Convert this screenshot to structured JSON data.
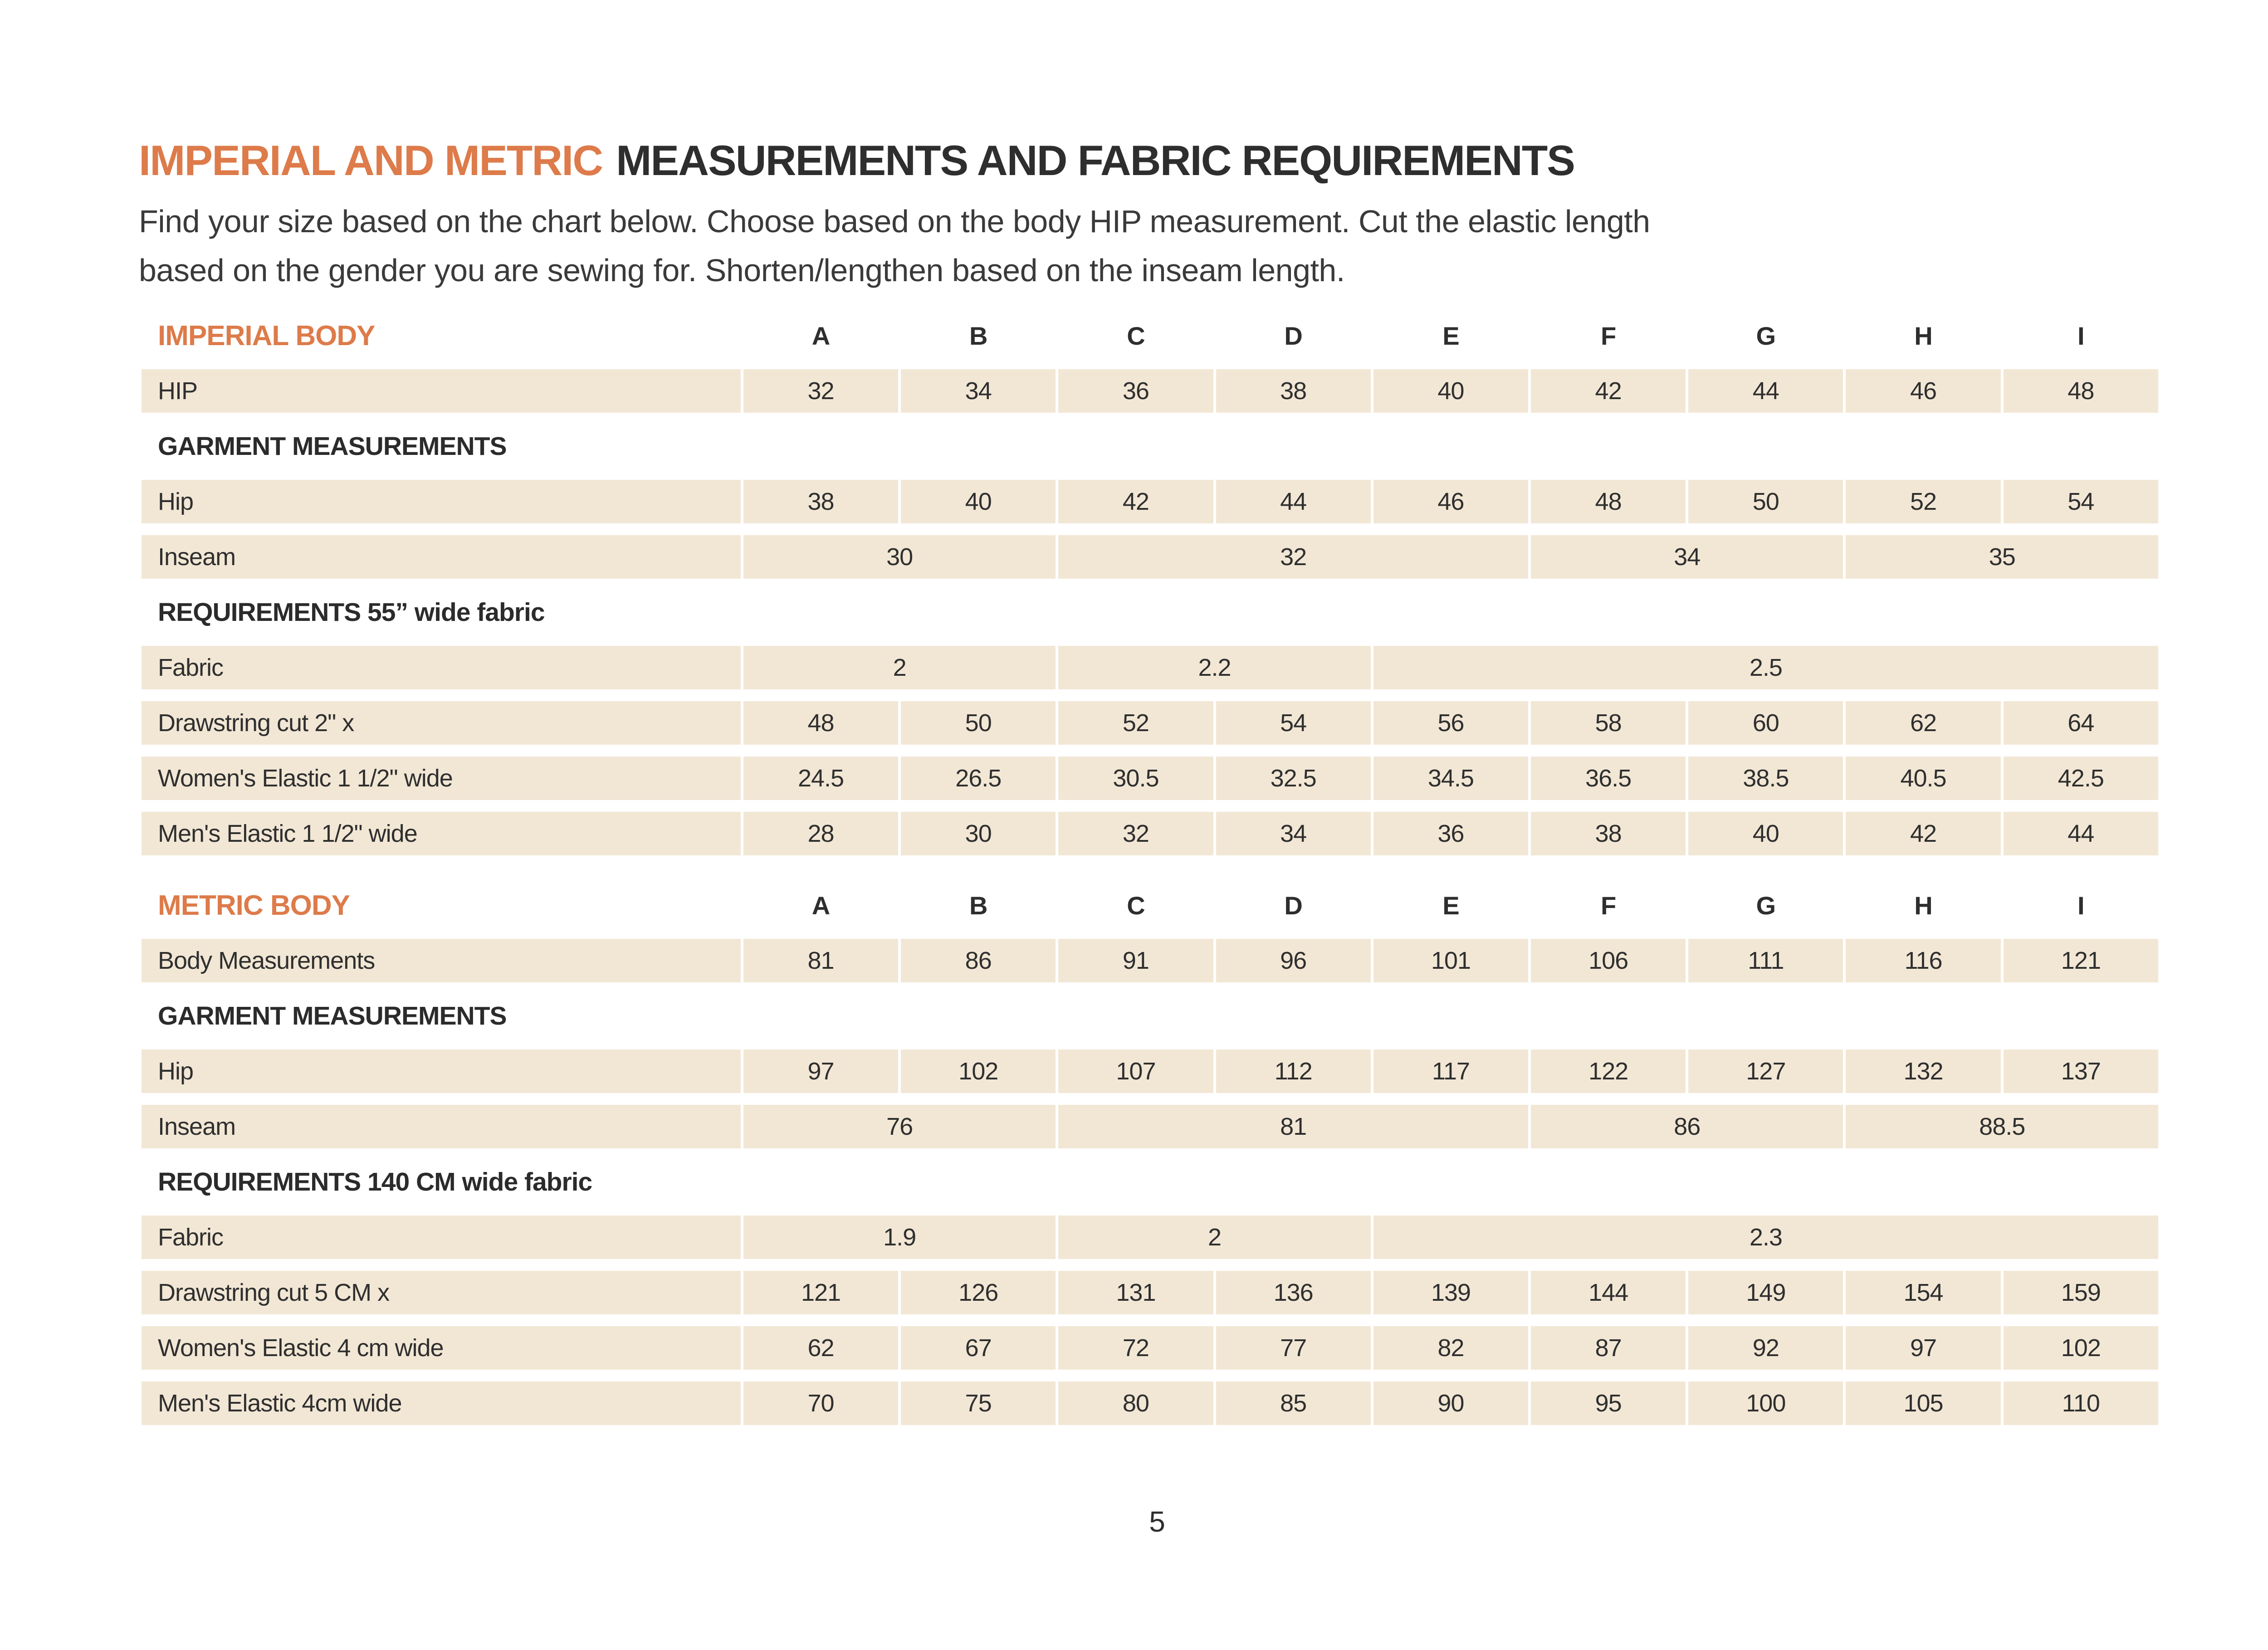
{
  "page": {
    "title_orange": "IMPERIAL AND METRIC",
    "title_dark": "MEASUREMENTS AND FABRIC REQUIREMENTS",
    "intro_line1": "Find your size based on the chart below. Choose based on the body HIP measurement. Cut the elastic length",
    "intro_line2": "based on the gender you are sewing for. Shorten/lengthen based on the inseam length.",
    "page_number": "5"
  },
  "colors": {
    "accent_orange": "#DD7B4A",
    "cell_beige": "#F2E7D5",
    "text_dark": "#2E2E2E"
  },
  "tables": [
    {
      "title": "IMPERIAL BODY",
      "columns": [
        "A",
        "B",
        "C",
        "D",
        "E",
        "F",
        "G",
        "H",
        "I"
      ],
      "rows": [
        {
          "type": "data",
          "label": "HIP",
          "values": [
            "32",
            "34",
            "36",
            "38",
            "40",
            "42",
            "44",
            "46",
            "48"
          ]
        },
        {
          "type": "section",
          "label": "GARMENT MEASUREMENTS"
        },
        {
          "type": "data",
          "label": "Hip",
          "values": [
            "38",
            "40",
            "42",
            "44",
            "46",
            "48",
            "50",
            "52",
            "54"
          ]
        },
        {
          "type": "span",
          "label": "Inseam",
          "cells": [
            {
              "text": "30",
              "span": 2
            },
            {
              "text": "32",
              "span": 3
            },
            {
              "text": "34",
              "span": 2
            },
            {
              "text": "35",
              "span": 2
            }
          ]
        },
        {
          "type": "section",
          "label": "REQUIREMENTS 55” wide fabric"
        },
        {
          "type": "span",
          "label": "Fabric",
          "cells": [
            {
              "text": "2",
              "span": 2
            },
            {
              "text": "2.2",
              "span": 2
            },
            {
              "text": "2.5",
              "span": 5
            }
          ]
        },
        {
          "type": "data",
          "label": "Drawstring cut 2\" x",
          "values": [
            "48",
            "50",
            "52",
            "54",
            "56",
            "58",
            "60",
            "62",
            "64"
          ]
        },
        {
          "type": "data",
          "label": "Women's Elastic 1 1/2\" wide",
          "values": [
            "24.5",
            "26.5",
            "30.5",
            "32.5",
            "34.5",
            "36.5",
            "38.5",
            "40.5",
            "42.5"
          ]
        },
        {
          "type": "data",
          "label": "Men's Elastic 1 1/2\" wide",
          "values": [
            "28",
            "30",
            "32",
            "34",
            "36",
            "38",
            "40",
            "42",
            "44"
          ]
        }
      ]
    },
    {
      "title": "METRIC BODY",
      "columns": [
        "A",
        "B",
        "C",
        "D",
        "E",
        "F",
        "G",
        "H",
        "I"
      ],
      "rows": [
        {
          "type": "data",
          "label": "Body Measurements",
          "values": [
            "81",
            "86",
            "91",
            "96",
            "101",
            "106",
            "111",
            "116",
            "121"
          ]
        },
        {
          "type": "section",
          "label": "GARMENT MEASUREMENTS"
        },
        {
          "type": "data",
          "label": "Hip",
          "values": [
            "97",
            "102",
            "107",
            "112",
            "117",
            "122",
            "127",
            "132",
            "137"
          ]
        },
        {
          "type": "span",
          "label": "Inseam",
          "cells": [
            {
              "text": "76",
              "span": 2
            },
            {
              "text": "81",
              "span": 3
            },
            {
              "text": "86",
              "span": 2
            },
            {
              "text": "88.5",
              "span": 2
            }
          ]
        },
        {
          "type": "section",
          "label": "REQUIREMENTS 140 CM wide fabric"
        },
        {
          "type": "span",
          "label": "Fabric",
          "cells": [
            {
              "text": "1.9",
              "span": 2
            },
            {
              "text": "2",
              "span": 2
            },
            {
              "text": "2.3",
              "span": 5
            }
          ]
        },
        {
          "type": "data",
          "label": "Drawstring cut 5 CM x",
          "values": [
            "121",
            "126",
            "131",
            "136",
            "139",
            "144",
            "149",
            "154",
            "159"
          ]
        },
        {
          "type": "data",
          "label": "Women's Elastic 4 cm wide",
          "values": [
            "62",
            "67",
            "72",
            "77",
            "82",
            "87",
            "92",
            "97",
            "102"
          ]
        },
        {
          "type": "data",
          "label": "Men's Elastic 4cm wide",
          "values": [
            "70",
            "75",
            "80",
            "85",
            "90",
            "95",
            "100",
            "105",
            "110"
          ]
        }
      ]
    }
  ]
}
